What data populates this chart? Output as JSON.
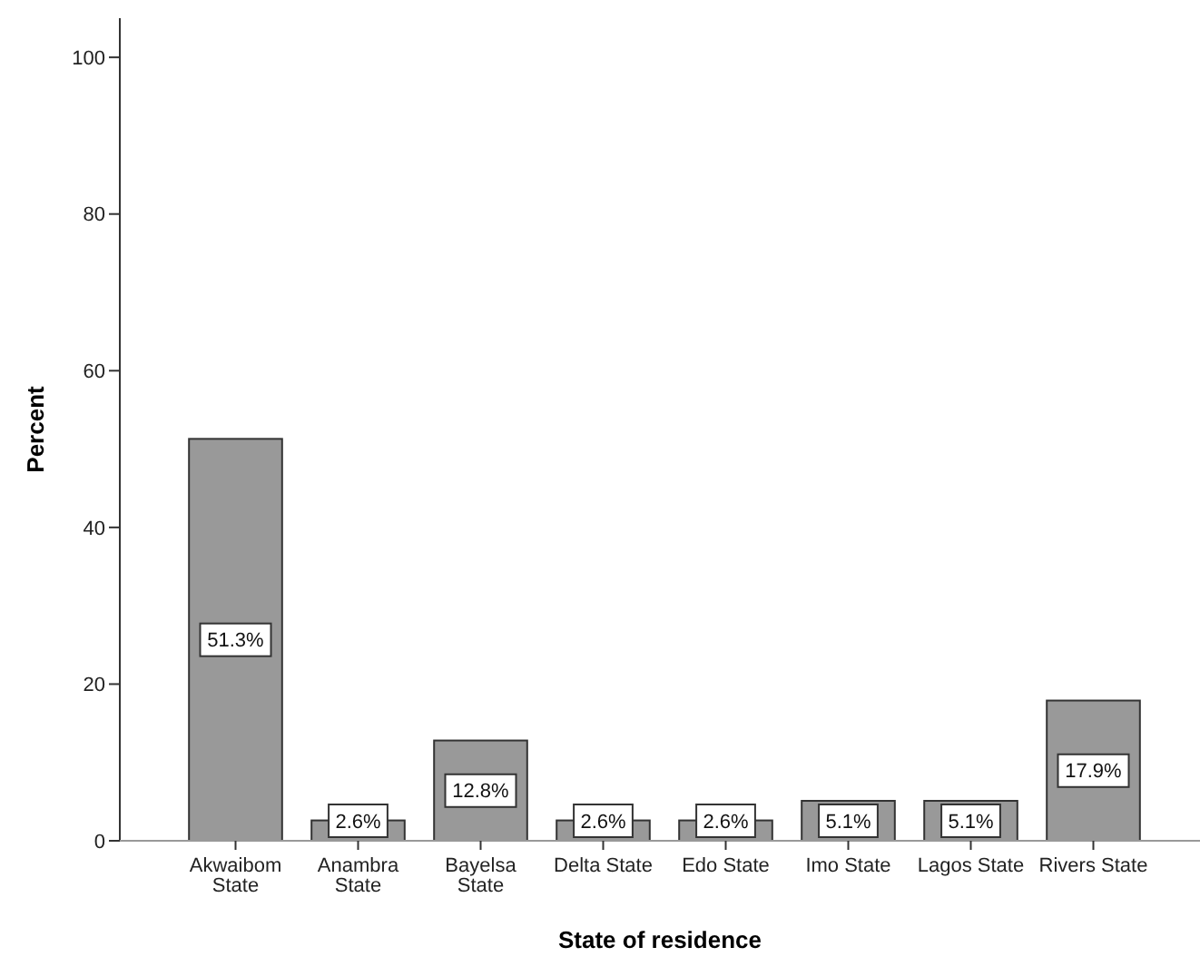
{
  "chart_data": {
    "type": "bar",
    "xlabel": "State of residence",
    "ylabel": "Percent",
    "categories": [
      "Akwaibom State",
      "Anambra State",
      "Bayelsa State",
      "Delta State",
      "Edo State",
      "Imo State",
      "Lagos State",
      "Rivers State"
    ],
    "values": [
      51.3,
      2.6,
      12.8,
      2.6,
      2.6,
      5.1,
      5.1,
      17.9
    ],
    "value_labels": [
      "51.3%",
      "2.6%",
      "12.8%",
      "2.6%",
      "2.6%",
      "5.1%",
      "5.1%",
      "17.9%"
    ],
    "color": "#999999",
    "ylim": [
      0,
      105
    ],
    "yticks": [
      0,
      20,
      40,
      60,
      80,
      100
    ],
    "grid": false
  }
}
